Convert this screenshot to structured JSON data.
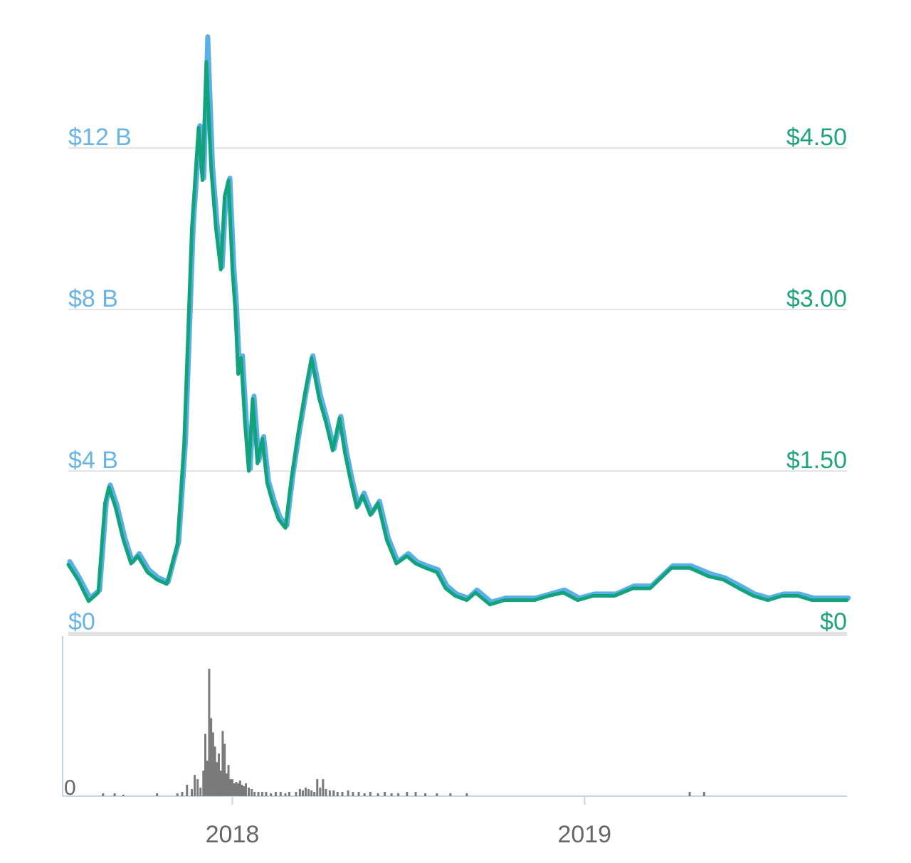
{
  "chart_data": [
    {
      "type": "line",
      "title": "",
      "xlabel": "",
      "left_axis": {
        "ticks": [
          "$0",
          "$4 B",
          "$8 B",
          "$12 B"
        ],
        "values": [
          0,
          4,
          8,
          12
        ],
        "unit": "B USD",
        "ylim": [
          0,
          15
        ]
      },
      "right_axis": {
        "ticks": [
          "$0",
          "$1.50",
          "$3.00",
          "$4.50"
        ],
        "values": [
          0,
          1.5,
          3.0,
          4.5
        ],
        "ylim": [
          0,
          5.6
        ]
      },
      "x_ticks": [
        "2018",
        "2019"
      ],
      "xlim": [
        "2017-07-15",
        "2019-09-30"
      ],
      "grid": true,
      "series": [
        {
          "axis": "left",
          "color": "#5ab0e6",
          "x": [
            "2017-07-15",
            "2017-07-25",
            "2017-08-05",
            "2017-08-15",
            "2017-08-22",
            "2017-08-26",
            "2017-09-02",
            "2017-09-10",
            "2017-09-18",
            "2017-09-25",
            "2017-10-05",
            "2017-10-15",
            "2017-10-25",
            "2017-11-05",
            "2017-11-12",
            "2017-11-20",
            "2017-11-27",
            "2017-12-01",
            "2017-12-05",
            "2017-12-10",
            "2017-12-15",
            "2017-12-20",
            "2017-12-24",
            "2017-12-28",
            "2018-01-01",
            "2018-01-04",
            "2018-01-07",
            "2018-01-10",
            "2018-01-14",
            "2018-01-18",
            "2018-01-22",
            "2018-01-27",
            "2018-02-01",
            "2018-02-06",
            "2018-02-12",
            "2018-02-18",
            "2018-02-25",
            "2018-03-03",
            "2018-03-10",
            "2018-03-17",
            "2018-03-24",
            "2018-04-01",
            "2018-04-08",
            "2018-04-15",
            "2018-04-22",
            "2018-04-28",
            "2018-05-04",
            "2018-05-10",
            "2018-05-16",
            "2018-05-24",
            "2018-06-01",
            "2018-06-10",
            "2018-06-20",
            "2018-07-01",
            "2018-07-10",
            "2018-07-20",
            "2018-08-01",
            "2018-08-10",
            "2018-08-20",
            "2018-09-01",
            "2018-09-10",
            "2018-09-25",
            "2018-10-10",
            "2018-10-25",
            "2018-11-10",
            "2018-11-25",
            "2018-12-10",
            "2018-12-25",
            "2019-01-10",
            "2019-02-01",
            "2019-02-20",
            "2019-03-10",
            "2019-04-01",
            "2019-04-20",
            "2019-05-10",
            "2019-05-25",
            "2019-06-10",
            "2019-06-25",
            "2019-07-10",
            "2019-07-25",
            "2019-08-10",
            "2019-08-25",
            "2019-09-10",
            "2019-09-30"
          ],
          "values": [
            1.7,
            1.3,
            0.8,
            1.0,
            3.2,
            3.6,
            3.1,
            2.3,
            1.7,
            1.9,
            1.5,
            1.3,
            1.2,
            2.2,
            4.7,
            10.0,
            12.5,
            11.2,
            14.7,
            11.5,
            10.0,
            9.0,
            10.8,
            11.2,
            9.0,
            8.0,
            6.4,
            6.8,
            5.2,
            4.0,
            5.8,
            4.2,
            4.8,
            3.7,
            3.2,
            2.8,
            2.6,
            3.8,
            4.9,
            5.9,
            6.8,
            5.8,
            5.2,
            4.5,
            5.3,
            4.4,
            3.7,
            3.1,
            3.4,
            2.9,
            3.2,
            2.3,
            1.7,
            1.9,
            1.7,
            1.6,
            1.5,
            1.1,
            0.9,
            0.8,
            1.0,
            0.7,
            0.8,
            0.8,
            0.8,
            0.9,
            1.0,
            0.8,
            0.9,
            0.9,
            1.1,
            1.1,
            1.6,
            1.6,
            1.4,
            1.3,
            1.1,
            0.9,
            0.8,
            0.9,
            0.9,
            0.8,
            0.8,
            0.8
          ]
        },
        {
          "axis": "right",
          "color": "#13a37c",
          "x": [
            "2017-07-15",
            "2017-07-25",
            "2017-08-05",
            "2017-08-15",
            "2017-08-22",
            "2017-08-26",
            "2017-09-02",
            "2017-09-10",
            "2017-09-18",
            "2017-09-25",
            "2017-10-05",
            "2017-10-15",
            "2017-10-25",
            "2017-11-05",
            "2017-11-12",
            "2017-11-20",
            "2017-11-27",
            "2017-12-01",
            "2017-12-05",
            "2017-12-10",
            "2017-12-15",
            "2017-12-20",
            "2017-12-24",
            "2017-12-28",
            "2018-01-01",
            "2018-01-04",
            "2018-01-07",
            "2018-01-10",
            "2018-01-14",
            "2018-01-18",
            "2018-01-22",
            "2018-01-27",
            "2018-02-01",
            "2018-02-06",
            "2018-02-12",
            "2018-02-18",
            "2018-02-25",
            "2018-03-03",
            "2018-03-10",
            "2018-03-17",
            "2018-03-24",
            "2018-04-01",
            "2018-04-08",
            "2018-04-15",
            "2018-04-22",
            "2018-04-28",
            "2018-05-04",
            "2018-05-10",
            "2018-05-16",
            "2018-05-24",
            "2018-06-01",
            "2018-06-10",
            "2018-06-20",
            "2018-07-01",
            "2018-07-10",
            "2018-07-20",
            "2018-08-01",
            "2018-08-10",
            "2018-08-20",
            "2018-09-01",
            "2018-09-10",
            "2018-09-25",
            "2018-10-10",
            "2018-10-25",
            "2018-11-10",
            "2018-11-25",
            "2018-12-10",
            "2018-12-25",
            "2019-01-10",
            "2019-02-01",
            "2019-02-20",
            "2019-03-10",
            "2019-04-01",
            "2019-04-20",
            "2019-05-10",
            "2019-05-25",
            "2019-06-10",
            "2019-06-25",
            "2019-07-10",
            "2019-07-25",
            "2019-08-10",
            "2019-08-25",
            "2019-09-10",
            "2019-09-30"
          ],
          "values": [
            0.63,
            0.49,
            0.29,
            0.37,
            1.2,
            1.35,
            1.16,
            0.86,
            0.64,
            0.71,
            0.56,
            0.49,
            0.45,
            0.82,
            1.76,
            3.75,
            4.69,
            4.2,
            5.3,
            4.31,
            3.75,
            3.37,
            4.05,
            4.2,
            3.37,
            3.0,
            2.4,
            2.55,
            1.95,
            1.5,
            2.17,
            1.57,
            1.8,
            1.39,
            1.2,
            1.05,
            0.97,
            1.42,
            1.84,
            2.21,
            2.55,
            2.17,
            1.95,
            1.69,
            1.99,
            1.65,
            1.39,
            1.16,
            1.27,
            1.09,
            1.2,
            0.86,
            0.64,
            0.71,
            0.64,
            0.6,
            0.56,
            0.41,
            0.34,
            0.3,
            0.37,
            0.26,
            0.3,
            0.3,
            0.3,
            0.34,
            0.37,
            0.3,
            0.34,
            0.34,
            0.41,
            0.41,
            0.6,
            0.6,
            0.52,
            0.49,
            0.41,
            0.34,
            0.3,
            0.34,
            0.34,
            0.3,
            0.3,
            0.3
          ]
        }
      ]
    },
    {
      "type": "bar",
      "title": "",
      "y_ticks": [
        "0"
      ],
      "color": "#7a7a7a",
      "ylim": [
        0,
        100
      ],
      "x": [
        "2017-08-20",
        "2017-09-01",
        "2017-09-10",
        "2017-10-15",
        "2017-11-05",
        "2017-11-10",
        "2017-11-15",
        "2017-11-20",
        "2017-11-23",
        "2017-11-26",
        "2017-11-29",
        "2017-12-02",
        "2017-12-04",
        "2017-12-06",
        "2017-12-08",
        "2017-12-10",
        "2017-12-12",
        "2017-12-14",
        "2017-12-16",
        "2017-12-18",
        "2017-12-20",
        "2017-12-22",
        "2017-12-24",
        "2017-12-26",
        "2017-12-28",
        "2017-12-30",
        "2018-01-01",
        "2018-01-03",
        "2018-01-05",
        "2018-01-07",
        "2018-01-09",
        "2018-01-11",
        "2018-01-13",
        "2018-01-15",
        "2018-01-18",
        "2018-01-21",
        "2018-01-24",
        "2018-01-28",
        "2018-02-01",
        "2018-02-05",
        "2018-02-10",
        "2018-02-15",
        "2018-02-20",
        "2018-02-25",
        "2018-03-01",
        "2018-03-08",
        "2018-03-12",
        "2018-03-15",
        "2018-03-18",
        "2018-03-21",
        "2018-03-24",
        "2018-03-27",
        "2018-03-30",
        "2018-04-02",
        "2018-04-05",
        "2018-04-08",
        "2018-04-12",
        "2018-04-16",
        "2018-04-20",
        "2018-04-25",
        "2018-05-01",
        "2018-05-06",
        "2018-05-12",
        "2018-05-18",
        "2018-05-24",
        "2018-06-01",
        "2018-06-08",
        "2018-06-15",
        "2018-06-22",
        "2018-07-01",
        "2018-07-10",
        "2018-07-20",
        "2018-08-01",
        "2018-08-15",
        "2018-09-01",
        "2019-04-20",
        "2019-05-05"
      ],
      "values": [
        2,
        2,
        1,
        2,
        2,
        3,
        8,
        5,
        15,
        12,
        6,
        18,
        44,
        25,
        90,
        55,
        45,
        35,
        24,
        30,
        18,
        46,
        37,
        16,
        22,
        12,
        12,
        9,
        10,
        9,
        11,
        8,
        7,
        9,
        6,
        5,
        3,
        3,
        3,
        3,
        2,
        3,
        3,
        2,
        3,
        3,
        5,
        4,
        6,
        5,
        4,
        3,
        12,
        6,
        12,
        5,
        4,
        4,
        3,
        3,
        4,
        3,
        3,
        2,
        3,
        2,
        3,
        2,
        2,
        3,
        3,
        2,
        2,
        2,
        2,
        3,
        3
      ]
    }
  ]
}
